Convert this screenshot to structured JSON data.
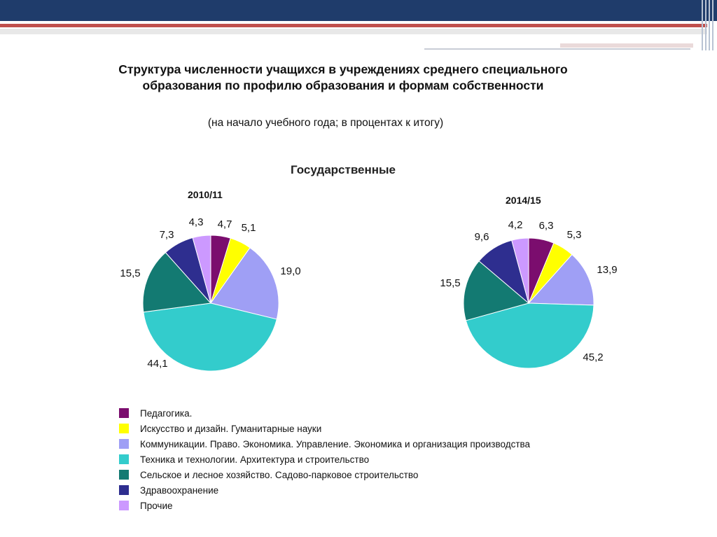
{
  "title": "Структура численности учащихся в учреждениях среднего специального образования по профилю образования и формам собственности",
  "subtitle": "(на начало учебного года; в процентах к итогу)",
  "section_title": "Государственные",
  "chart_data": [
    {
      "type": "pie",
      "title": "2010/11",
      "categories": [
        "Педагогика.",
        "Искусство и дизайн. Гуманитарные науки",
        "Коммуникации. Право. Экономика. Управление. Экономика и организация производства",
        "Техника и технологии. Архитектура и строительство",
        "Сельское и лесное хозяйство. Садово-парковое строительство",
        "Здравоохранение",
        "Прочие"
      ],
      "values": [
        4.7,
        5.1,
        19.0,
        44.1,
        15.5,
        7.3,
        4.3
      ],
      "labels": [
        "4,7",
        "5,1",
        "19,0",
        "44,1",
        "15,5",
        "7,3",
        "4,3"
      ]
    },
    {
      "type": "pie",
      "title": "2014/15",
      "categories": [
        "Педагогика.",
        "Искусство и дизайн. Гуманитарные науки",
        "Коммуникации. Право. Экономика. Управление. Экономика и организация производства",
        "Техника и технологии. Архитектура и строительство",
        "Сельское и лесное хозяйство. Садово-парковое строительство",
        "Здравоохранение",
        "Прочие"
      ],
      "values": [
        6.3,
        5.3,
        13.9,
        45.2,
        15.5,
        9.6,
        4.2
      ],
      "labels": [
        "6,3",
        "5,3",
        "13,9",
        "45,2",
        "15,5",
        "9,6",
        "4,2"
      ]
    }
  ],
  "legend": [
    {
      "label": "Педагогика.",
      "color": "#7b0d6e"
    },
    {
      "label": "Искусство и дизайн. Гуманитарные науки",
      "color": "#ffff00"
    },
    {
      "label": "Коммуникации. Право. Экономика. Управление. Экономика и организация производства",
      "color": "#9f9ff5"
    },
    {
      "label": "Техника и технологии. Архитектура и строительство",
      "color": "#33cccc"
    },
    {
      "label": "Сельское и лесное хозяйство. Садово-парковое строительство",
      "color": "#137a72"
    },
    {
      "label": "Здравоохранение",
      "color": "#2e2e8f"
    },
    {
      "label": "Прочие",
      "color": "#cc99ff"
    }
  ]
}
